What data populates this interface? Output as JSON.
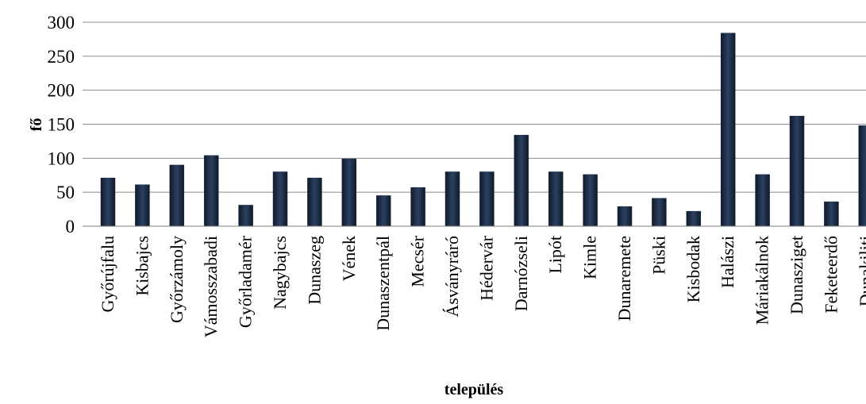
{
  "chart_data": {
    "type": "bar",
    "title": "",
    "xlabel": "település",
    "ylabel": "fő",
    "ylim": [
      0,
      300
    ],
    "yticks": [
      0,
      50,
      100,
      150,
      200,
      250,
      300
    ],
    "grid": true,
    "legend": "none",
    "bar_color": "#1b2a40",
    "categories": [
      "Győrújfalu",
      "Kisbajcs",
      "Győrzámoly",
      "Vámosszabadi",
      "Győrladamér",
      "Nagybajcs",
      "Dunaszeg",
      "Vének",
      "Dunaszentpál",
      "Mecsér",
      "Ásványráró",
      "Hédervár",
      "Darnózseli",
      "Lipót",
      "Kimle",
      "Dunaremete",
      "Püski",
      "Kisbodak",
      "Halászi",
      "Máriakálnok",
      "Dunasziget",
      "Feketeerdő",
      "Dunakiliti"
    ],
    "values": [
      71,
      61,
      90,
      104,
      31,
      80,
      71,
      99,
      45,
      57,
      80,
      80,
      134,
      80,
      76,
      29,
      41,
      22,
      284,
      76,
      162,
      36,
      148
    ]
  }
}
